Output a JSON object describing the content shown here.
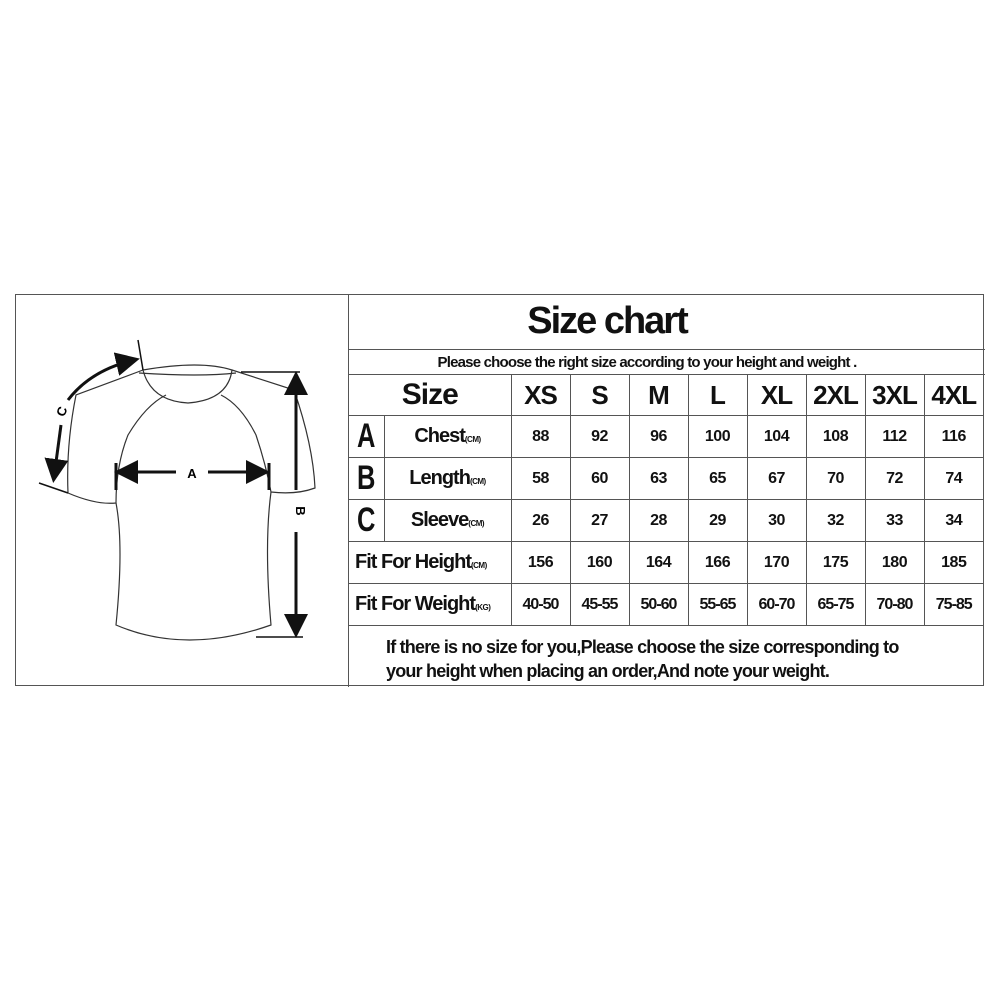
{
  "title": "Size chart",
  "subtitle": "Please choose the right size according to your height and weight .",
  "diagram": {
    "label_a": "A",
    "label_b": "B",
    "label_c": "C"
  },
  "header": {
    "label": "Size",
    "sizes": [
      "XS",
      "S",
      "M",
      "L",
      "XL",
      "2XL",
      "3XL",
      "4XL"
    ]
  },
  "rows": [
    {
      "letter": "A",
      "label": "Chest",
      "unit": "(CM)",
      "values": [
        "88",
        "92",
        "96",
        "100",
        "104",
        "108",
        "112",
        "116"
      ]
    },
    {
      "letter": "B",
      "label": "Length",
      "unit": "(CM)",
      "values": [
        "58",
        "60",
        "63",
        "65",
        "67",
        "70",
        "72",
        "74"
      ]
    },
    {
      "letter": "C",
      "label": "Sleeve",
      "unit": "(CM)",
      "values": [
        "26",
        "27",
        "28",
        "29",
        "30",
        "32",
        "33",
        "34"
      ]
    },
    {
      "letter": "",
      "label": "Fit For Height",
      "unit": "(CM)",
      "values": [
        "156",
        "160",
        "164",
        "166",
        "170",
        "175",
        "180",
        "185"
      ]
    },
    {
      "letter": "",
      "label": "Fit For Weight",
      "unit": "(KG)",
      "values": [
        "40-50",
        "45-55",
        "50-60",
        "55-65",
        "60-70",
        "65-75",
        "70-80",
        "75-85"
      ]
    }
  ],
  "footer": {
    "line1": "If there is no size for you,Please choose the size corresponding to",
    "line2": "your height when placing an order,And note your weight."
  }
}
